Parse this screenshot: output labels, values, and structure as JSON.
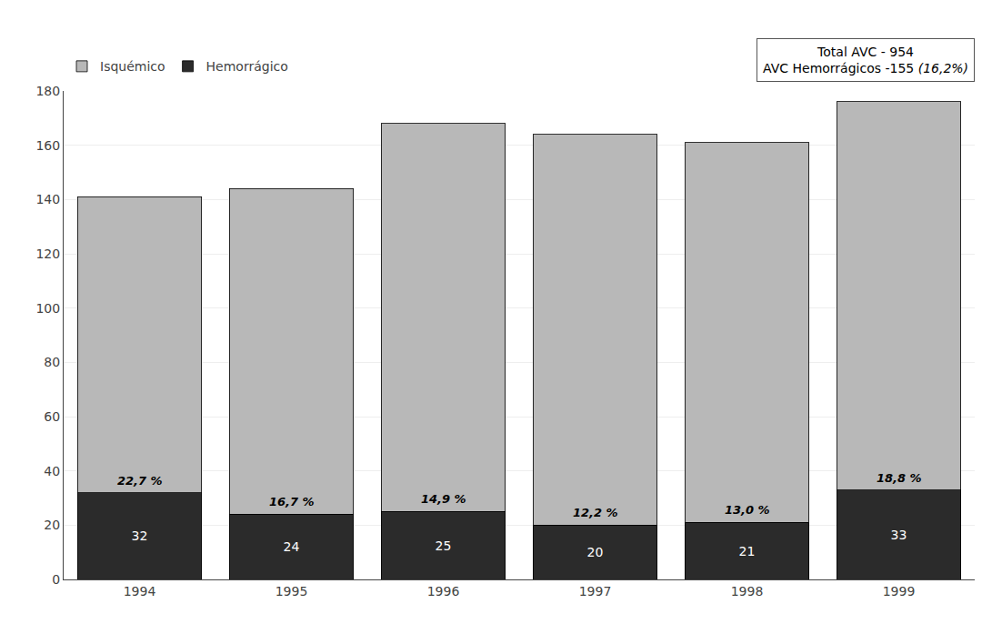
{
  "chart_data": {
    "type": "bar",
    "stacked": true,
    "categories": [
      "1994",
      "1995",
      "1996",
      "1997",
      "1998",
      "1999"
    ],
    "series": [
      {
        "name": "Hemorrágico",
        "color": "#2b2b2b",
        "values": [
          32,
          24,
          25,
          20,
          21,
          33
        ],
        "data_labels": true
      },
      {
        "name": "Isquémico",
        "color": "#b8b8b8",
        "values": [
          109,
          120,
          143,
          144,
          140,
          143
        ]
      }
    ],
    "annotations": [
      {
        "x": "1994",
        "text": "22,7 %"
      },
      {
        "x": "1995",
        "text": "16,7 %"
      },
      {
        "x": "1996",
        "text": "14,9 %"
      },
      {
        "x": "1997",
        "text": "12,2 %"
      },
      {
        "x": "1998",
        "text": "13,0 %"
      },
      {
        "x": "1999",
        "text": "18,8 %"
      },
      {
        "text": "Total AVC - 954\nAVC Hemorrágicos -155 (16,2%)"
      }
    ],
    "ylim": [
      0,
      180
    ],
    "yticks": [
      0,
      20,
      40,
      60,
      80,
      100,
      120,
      140,
      160,
      180
    ],
    "grid": true,
    "legend": "upper left"
  }
}
